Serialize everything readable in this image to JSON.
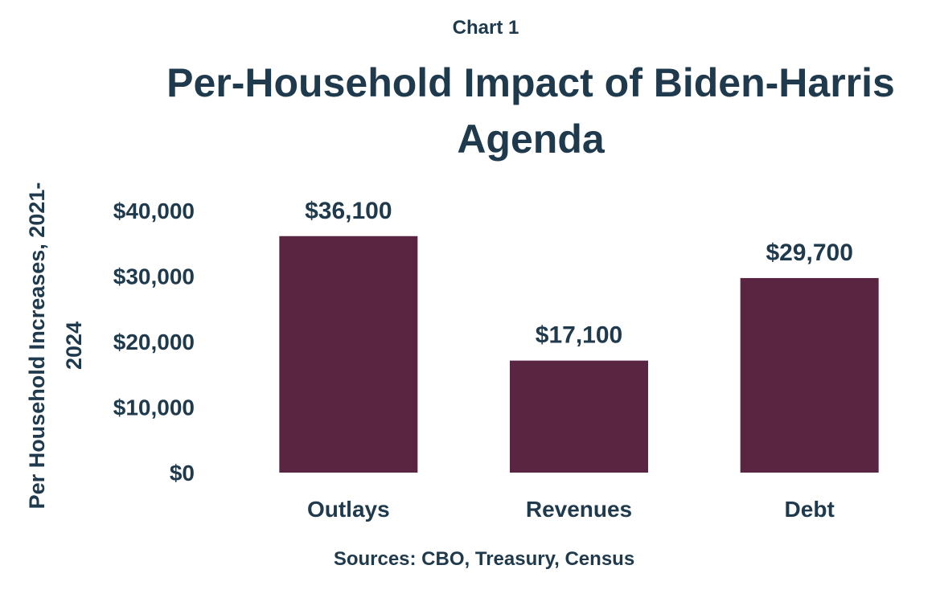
{
  "chart_data": {
    "type": "bar",
    "supertitle": "Chart 1",
    "title_lines": [
      "Per-Household Impact of Biden-Harris",
      "Agenda"
    ],
    "ylabel_lines": [
      "Per Household Increases, 2021-",
      "2024"
    ],
    "categories": [
      "Outlays",
      "Revenues",
      "Debt"
    ],
    "values": [
      36100,
      17100,
      29700
    ],
    "data_labels": [
      "$36,100",
      "$17,100",
      "$29,700"
    ],
    "yticks": [
      0,
      10000,
      20000,
      30000,
      40000
    ],
    "ytick_labels": [
      "$0",
      "$10,000",
      "$20,000",
      "$30,000",
      "$40,000"
    ],
    "ylim": [
      0,
      40000
    ],
    "grid": false,
    "legend": "none",
    "source": "Sources: CBO, Treasury, Census",
    "colors": {
      "bar": "#5a2540",
      "text": "#1f3a4d"
    }
  }
}
